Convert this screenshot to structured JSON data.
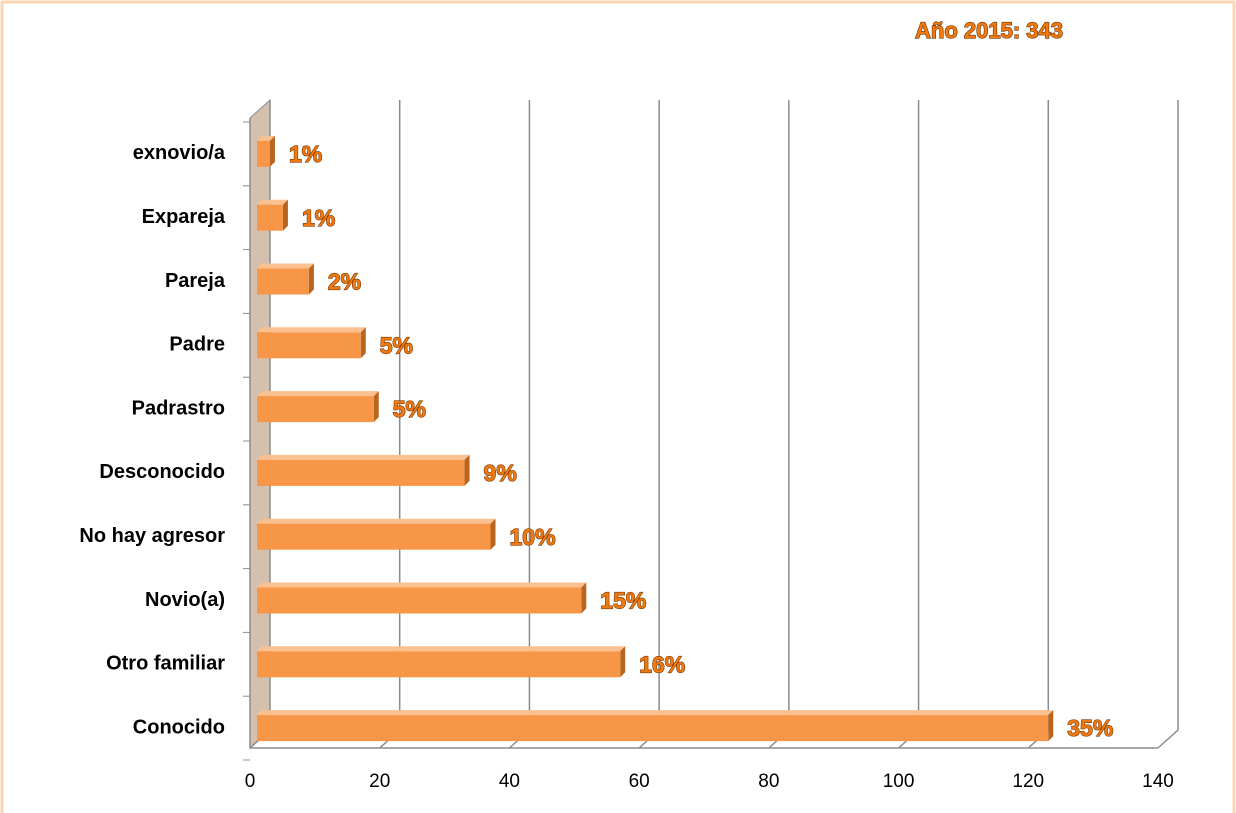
{
  "chart_data": {
    "type": "bar3d_horizontal",
    "title": "Año 2015: 343",
    "categories": [
      "exnovio/a",
      "Expareja",
      "Pareja",
      "Padre",
      "Padrastro",
      "Desconocido",
      "No hay agresor",
      "Novio(a)",
      "Otro familiar",
      "Conocido"
    ],
    "values": [
      2,
      4,
      8,
      16,
      18,
      32,
      36,
      50,
      56,
      122
    ],
    "percent_labels": [
      "1%",
      "1%",
      "2%",
      "5%",
      "5%",
      "9%",
      "10%",
      "15%",
      "16%",
      "35%"
    ],
    "color": "#f79646",
    "xlim": [
      0,
      140
    ],
    "xticks": [
      0,
      20,
      40,
      60,
      80,
      100,
      120,
      140
    ],
    "grid": true
  }
}
